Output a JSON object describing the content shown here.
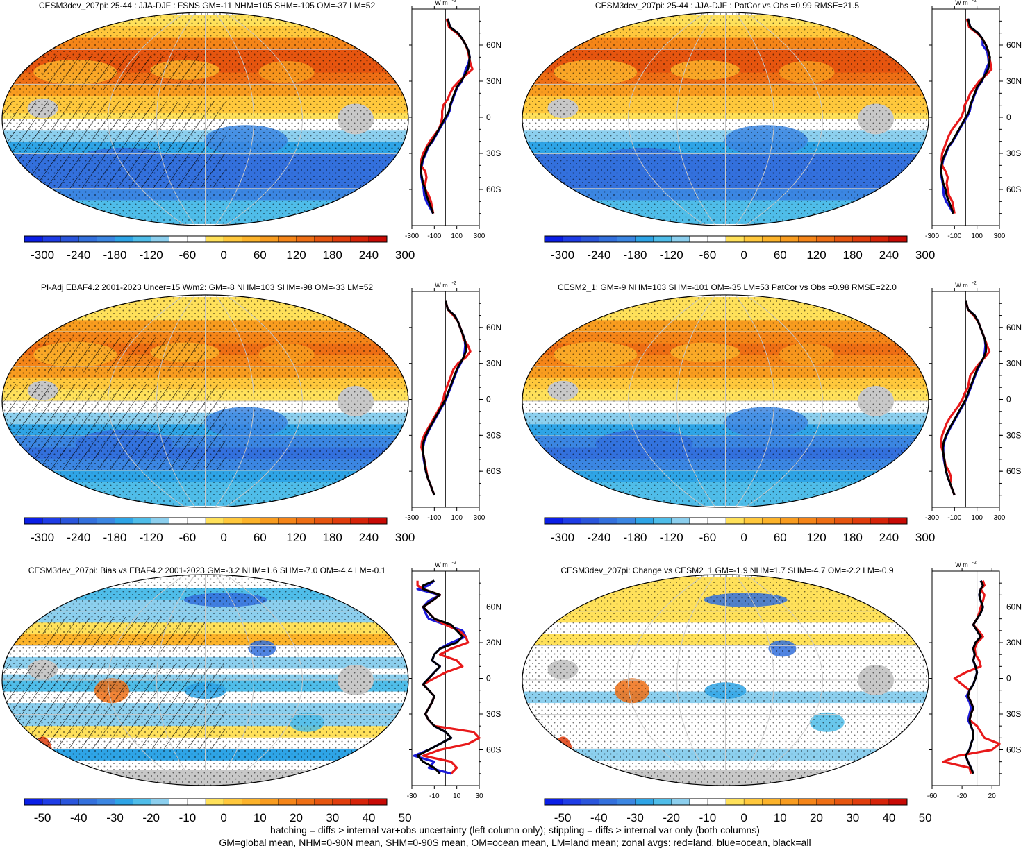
{
  "figure": {
    "footnote_line1": "hatching = diffs > internal var+obs uncertainty (left column only); stippling = diffs > internal var only (both columns)",
    "footnote_line2": "GM=global mean, NHM=0-90N mean, SHM=0-90S mean, OM=ocean mean, LM=land mean; zonal avgs: red=land, blue=ocean, black=all",
    "units_label": "W m",
    "units_exponent": "-2",
    "lat_ticks": [
      "60N",
      "30N",
      "0",
      "30S",
      "60S"
    ]
  },
  "colors": {
    "land": "#e8191a",
    "ocean": "#1a1ad9",
    "all": "#000000",
    "landmask": "#c8c8c8",
    "map_border": "#000000"
  },
  "chart_data": [
    {
      "type": "heatmap",
      "panel": "top-left",
      "title": "CESM3dev_207pi: 25-44 : JJA-DJF : FSNS GM=-11 NHM=105 SHM=-105 OM=-37 LM=52",
      "colorbar": {
        "min": -330,
        "max": 330,
        "labels": [
          "-300",
          "-240",
          "-180",
          "-120",
          "-60",
          "0",
          "60",
          "120",
          "180",
          "240",
          "300"
        ],
        "colors": [
          "#0a1ee6",
          "#1e3ce6",
          "#2a55dc",
          "#3370dd",
          "#3b86e2",
          "#2ea4e6",
          "#4fbde9",
          "#8ccfee",
          "#ffffff",
          "#ffffff",
          "#ffe15a",
          "#ffc83c",
          "#fcb32a",
          "#f89c1f",
          "#f58518",
          "#ee6e14",
          "#e6550f",
          "#e03c0c",
          "#d62309",
          "#c80a05"
        ]
      },
      "has_hatching": true,
      "has_stippling": true,
      "zonal": {
        "type": "line",
        "xlim": [
          -300,
          300
        ],
        "xticks": [
          "-300",
          "-100",
          "100",
          "300"
        ],
        "lat": [
          82,
          75,
          70,
          65,
          60,
          55,
          50,
          45,
          40,
          35,
          30,
          25,
          20,
          15,
          10,
          5,
          0,
          -5,
          -10,
          -15,
          -20,
          -25,
          -30,
          -35,
          -40,
          -45,
          -50,
          -55,
          -60,
          -65,
          -70,
          -75,
          -80
        ],
        "all": [
          20,
          40,
          110,
          150,
          180,
          205,
          215,
          210,
          200,
          170,
          140,
          100,
          80,
          60,
          40,
          30,
          0,
          -30,
          -60,
          -90,
          -120,
          -160,
          -180,
          -205,
          -215,
          -220,
          -210,
          -200,
          -180,
          -170,
          -150,
          -130,
          -110
        ],
        "land": [
          10,
          30,
          100,
          150,
          180,
          200,
          210,
          220,
          240,
          180,
          120,
          70,
          40,
          20,
          -20,
          -30,
          -30,
          -40,
          -60,
          -100,
          -140,
          -170,
          -200,
          -215,
          -220,
          -180,
          -170,
          -180,
          -180,
          -150,
          -130,
          -120,
          -110
        ],
        "ocean": [
          20,
          40,
          110,
          150,
          180,
          205,
          215,
          205,
          180,
          165,
          145,
          105,
          85,
          65,
          45,
          35,
          10,
          -25,
          -55,
          -85,
          -115,
          -155,
          -175,
          -200,
          -210,
          -220,
          -215,
          -205,
          -195,
          -190,
          -170,
          -140,
          -110
        ]
      }
    },
    {
      "type": "heatmap",
      "panel": "top-right",
      "title": "CESM3dev_207pi: 25-44 : JJA-DJF : PatCor vs Obs =0.99 RMSE=21.5",
      "colorbar": {
        "min": -330,
        "max": 330,
        "labels": [
          "-300",
          "-240",
          "-180",
          "-120",
          "-60",
          "0",
          "60",
          "120",
          "180",
          "240",
          "300"
        ],
        "colors": [
          "#0a1ee6",
          "#1e3ce6",
          "#2a55dc",
          "#3370dd",
          "#3b86e2",
          "#2ea4e6",
          "#4fbde9",
          "#8ccfee",
          "#ffffff",
          "#ffffff",
          "#ffe15a",
          "#ffc83c",
          "#fcb32a",
          "#f89c1f",
          "#f58518",
          "#ee6e14",
          "#e6550f",
          "#e03c0c",
          "#d62309",
          "#c80a05"
        ]
      },
      "has_hatching": false,
      "has_stippling": true,
      "zonal": {
        "type": "line",
        "xlim": [
          -300,
          300
        ],
        "xticks": [
          "-300",
          "-100",
          "100",
          "300"
        ],
        "lat": [
          82,
          75,
          70,
          65,
          60,
          55,
          50,
          45,
          40,
          35,
          30,
          25,
          20,
          15,
          10,
          5,
          0,
          -5,
          -10,
          -15,
          -20,
          -25,
          -30,
          -35,
          -40,
          -45,
          -50,
          -55,
          -60,
          -65,
          -70,
          -75,
          -80
        ],
        "all": [
          20,
          40,
          110,
          150,
          180,
          200,
          215,
          210,
          200,
          170,
          140,
          100,
          80,
          60,
          40,
          30,
          0,
          -30,
          -60,
          -90,
          -120,
          -160,
          -180,
          -205,
          -215,
          -220,
          -210,
          -200,
          -180,
          -170,
          -150,
          -130,
          -110
        ],
        "land": [
          10,
          30,
          100,
          150,
          180,
          200,
          210,
          220,
          230,
          180,
          120,
          80,
          40,
          20,
          -10,
          -20,
          -40,
          -80,
          -120,
          -150,
          -170,
          -190,
          -210,
          -215,
          -210,
          -180,
          -160,
          -170,
          -160,
          -150,
          -120,
          -110,
          -100
        ],
        "ocean": [
          20,
          40,
          110,
          150,
          150,
          190,
          200,
          205,
          180,
          165,
          145,
          105,
          85,
          65,
          45,
          35,
          10,
          -25,
          -55,
          -85,
          -115,
          -155,
          -175,
          -200,
          -210,
          -220,
          -215,
          -205,
          -200,
          -195,
          -175,
          -140,
          -110
        ]
      }
    },
    {
      "type": "heatmap",
      "panel": "middle-left",
      "title": "PI-Adj EBAF4.2 2001-2023 Uncer=15 W/m2: GM=-8 NHM=103 SHM=-98 OM=-33 LM=52",
      "colorbar": {
        "min": -330,
        "max": 330,
        "labels": [
          "-300",
          "-240",
          "-180",
          "-120",
          "-60",
          "0",
          "60",
          "120",
          "180",
          "240",
          "300"
        ],
        "colors": [
          "#0a1ee6",
          "#1e3ce6",
          "#2a55dc",
          "#3370dd",
          "#3b86e2",
          "#2ea4e6",
          "#4fbde9",
          "#8ccfee",
          "#ffffff",
          "#ffffff",
          "#ffe15a",
          "#ffc83c",
          "#fcb32a",
          "#f89c1f",
          "#f58518",
          "#ee6e14",
          "#e6550f",
          "#e03c0c",
          "#d62309",
          "#c80a05"
        ]
      },
      "has_hatching": true,
      "has_stippling": true,
      "zonal": {
        "type": "line",
        "xlim": [
          -300,
          300
        ],
        "xticks": [
          "-300",
          "-100",
          "100",
          "300"
        ],
        "lat": [
          82,
          75,
          70,
          65,
          60,
          55,
          50,
          45,
          40,
          35,
          30,
          25,
          20,
          15,
          10,
          5,
          0,
          -5,
          -10,
          -15,
          -20,
          -25,
          -30,
          -35,
          -40,
          -45,
          -50,
          -55,
          -60,
          -65,
          -70,
          -75,
          -80
        ],
        "all": [
          0,
          20,
          80,
          110,
          130,
          150,
          170,
          180,
          180,
          160,
          130,
          100,
          80,
          60,
          40,
          20,
          0,
          -30,
          -60,
          -90,
          -120,
          -150,
          -175,
          -195,
          -205,
          -200,
          -190,
          -185,
          -175,
          -160,
          -140,
          -120,
          -100
        ],
        "land": [
          0,
          20,
          70,
          110,
          130,
          150,
          160,
          200,
          220,
          180,
          110,
          70,
          50,
          30,
          10,
          -10,
          -20,
          -40,
          -70,
          -100,
          -130,
          -160,
          -190,
          -210,
          -215,
          -200,
          -190,
          -180,
          -170,
          -160,
          -140,
          -120,
          -100
        ],
        "ocean": [
          0,
          20,
          80,
          110,
          130,
          150,
          170,
          175,
          170,
          160,
          135,
          105,
          85,
          65,
          45,
          25,
          5,
          -25,
          -55,
          -85,
          -115,
          -145,
          -170,
          -190,
          -200,
          -200,
          -195,
          -185,
          -175,
          -160,
          -140,
          -120,
          -100
        ]
      }
    },
    {
      "type": "heatmap",
      "panel": "middle-right",
      "title": "CESM2_1: GM=-9 NHM=103 SHM=-101 OM=-35 LM=53 PatCor vs Obs =0.98 RMSE=22.0",
      "colorbar": {
        "min": -330,
        "max": 330,
        "labels": [
          "-300",
          "-240",
          "-180",
          "-120",
          "-60",
          "0",
          "60",
          "120",
          "180",
          "240",
          "300"
        ],
        "colors": [
          "#0a1ee6",
          "#1e3ce6",
          "#2a55dc",
          "#3370dd",
          "#3b86e2",
          "#2ea4e6",
          "#4fbde9",
          "#8ccfee",
          "#ffffff",
          "#ffffff",
          "#ffe15a",
          "#ffc83c",
          "#fcb32a",
          "#f89c1f",
          "#f58518",
          "#ee6e14",
          "#e6550f",
          "#e03c0c",
          "#d62309",
          "#c80a05"
        ]
      },
      "has_hatching": false,
      "has_stippling": true,
      "zonal": {
        "type": "line",
        "xlim": [
          -300,
          300
        ],
        "xticks": [
          "-300",
          "-100",
          "100",
          "300"
        ],
        "lat": [
          82,
          75,
          70,
          65,
          60,
          55,
          50,
          45,
          40,
          35,
          30,
          25,
          20,
          15,
          10,
          5,
          0,
          -5,
          -10,
          -15,
          -20,
          -25,
          -30,
          -35,
          -40,
          -45,
          -50,
          -55,
          -60,
          -65,
          -70,
          -75,
          -80
        ],
        "all": [
          0,
          20,
          80,
          110,
          130,
          150,
          170,
          180,
          180,
          160,
          130,
          100,
          80,
          60,
          40,
          20,
          0,
          -30,
          -60,
          -90,
          -120,
          -150,
          -175,
          -195,
          -205,
          -200,
          -190,
          -185,
          -175,
          -160,
          -140,
          -120,
          -100
        ],
        "land": [
          0,
          20,
          70,
          110,
          130,
          150,
          170,
          190,
          210,
          170,
          120,
          80,
          40,
          30,
          20,
          -10,
          -30,
          -60,
          -100,
          -140,
          -170,
          -190,
          -210,
          -220,
          -215,
          -200,
          -190,
          -180,
          -150,
          -130,
          -140,
          -120,
          -100
        ],
        "ocean": [
          0,
          20,
          80,
          110,
          130,
          150,
          170,
          175,
          170,
          160,
          135,
          105,
          85,
          65,
          45,
          25,
          5,
          -25,
          -55,
          -85,
          -115,
          -145,
          -170,
          -190,
          -200,
          -200,
          -195,
          -185,
          -175,
          -160,
          -140,
          -120,
          -100
        ]
      }
    },
    {
      "type": "heatmap",
      "panel": "bottom-left",
      "title": "CESM3dev_207pi: Bias vs EBAF4.2 2001-2023 GM=-3.2 NHM=1.6 SHM=-7.0 OM=-4.4 LM=-0.1",
      "colorbar": {
        "min": -55,
        "max": 55,
        "labels": [
          "-50",
          "-40",
          "-30",
          "-20",
          "-10",
          "0",
          "10",
          "20",
          "30",
          "40",
          "50"
        ],
        "colors": [
          "#0a1ee6",
          "#1e3ce6",
          "#2a55dc",
          "#3370dd",
          "#3b86e2",
          "#2ea4e6",
          "#4fbde9",
          "#8ccfee",
          "#ffffff",
          "#ffffff",
          "#ffe15a",
          "#ffc83c",
          "#fcb32a",
          "#f89c1f",
          "#f58518",
          "#ee6e14",
          "#e6550f",
          "#e03c0c",
          "#d62309",
          "#c80a05"
        ]
      },
      "has_hatching": true,
      "has_stippling": true,
      "zonal": {
        "type": "line",
        "xlim": [
          -30,
          30
        ],
        "xticks": [
          "-30",
          "-10",
          "10",
          "30"
        ],
        "lat": [
          82,
          78,
          75,
          70,
          65,
          60,
          55,
          50,
          45,
          40,
          35,
          30,
          25,
          20,
          15,
          10,
          5,
          0,
          -5,
          -10,
          -15,
          -20,
          -25,
          -30,
          -35,
          -40,
          -45,
          -50,
          -55,
          -60,
          -65,
          -70,
          -75,
          -80
        ],
        "all": [
          -10,
          -20,
          -20,
          -5,
          -12,
          -20,
          -15,
          -10,
          5,
          10,
          15,
          10,
          -5,
          -10,
          -12,
          -5,
          -10,
          -15,
          -20,
          -15,
          -10,
          -12,
          -15,
          -18,
          -15,
          -10,
          0,
          5,
          -5,
          -15,
          -25,
          -20,
          -10,
          -5
        ],
        "land": [
          -25,
          -25,
          -20,
          -5,
          -12,
          -20,
          -15,
          -10,
          0,
          12,
          18,
          20,
          5,
          -5,
          10,
          15,
          0,
          -10,
          -20,
          -15,
          -10,
          -12,
          -15,
          -18,
          -15,
          -10,
          25,
          30,
          20,
          -5,
          -20,
          5,
          10,
          5
        ],
        "ocean": [
          -10,
          -15,
          -25,
          -5,
          -15,
          -20,
          -18,
          -15,
          0,
          15,
          18,
          5,
          -5,
          -10,
          -12,
          -5,
          -10,
          -15,
          -20,
          -15,
          -10,
          -12,
          -15,
          -18,
          -15,
          -10,
          0,
          5,
          -5,
          -15,
          -28,
          -10,
          -15,
          5
        ]
      }
    },
    {
      "type": "heatmap",
      "panel": "bottom-right",
      "title": "CESM3dev_207pi: Change vs CESM2_1 GM=-1.9 NHM=1.7 SHM=-4.7 OM=-2.2 LM=-0.9",
      "colorbar": {
        "min": -55,
        "max": 55,
        "labels": [
          "-50",
          "-40",
          "-30",
          "-20",
          "-10",
          "0",
          "10",
          "20",
          "30",
          "40",
          "50"
        ],
        "colors": [
          "#0a1ee6",
          "#1e3ce6",
          "#2a55dc",
          "#3370dd",
          "#3b86e2",
          "#2ea4e6",
          "#4fbde9",
          "#8ccfee",
          "#ffffff",
          "#ffffff",
          "#ffe15a",
          "#ffc83c",
          "#fcb32a",
          "#f89c1f",
          "#f58518",
          "#ee6e14",
          "#e6550f",
          "#e03c0c",
          "#d62309",
          "#c80a05"
        ]
      },
      "has_hatching": false,
      "has_stippling": true,
      "zonal": {
        "type": "line",
        "xlim": [
          -60,
          30
        ],
        "xticks": [
          "-60",
          "-20",
          "20"
        ],
        "lat": [
          82,
          78,
          75,
          70,
          65,
          60,
          55,
          50,
          45,
          40,
          35,
          30,
          25,
          20,
          15,
          10,
          5,
          0,
          -5,
          -10,
          -15,
          -20,
          -25,
          -30,
          -35,
          -40,
          -45,
          -50,
          -55,
          -60,
          -65,
          -70,
          -75,
          -80
        ],
        "all": [
          5,
          8,
          5,
          3,
          5,
          8,
          5,
          0,
          -5,
          0,
          5,
          -2,
          -5,
          -3,
          -5,
          -2,
          0,
          -2,
          -5,
          -10,
          -12,
          -8,
          -5,
          -8,
          -10,
          -8,
          -5,
          -5,
          -8,
          -10,
          -15,
          -12,
          -8,
          -5
        ],
        "land": [
          8,
          10,
          5,
          10,
          8,
          5,
          3,
          0,
          -5,
          2,
          8,
          0,
          -3,
          -2,
          3,
          5,
          -15,
          -30,
          -20,
          -10,
          -12,
          -8,
          -5,
          -8,
          -10,
          0,
          5,
          10,
          30,
          20,
          -25,
          -45,
          -10,
          -8
        ],
        "ocean": [
          5,
          8,
          5,
          3,
          5,
          8,
          5,
          0,
          -5,
          0,
          5,
          -2,
          -5,
          -3,
          -5,
          -2,
          0,
          -2,
          -5,
          -10,
          -14,
          -10,
          -8,
          -10,
          -12,
          -8,
          -5,
          -5,
          -8,
          -10,
          -15,
          -12,
          -8,
          -5
        ]
      }
    }
  ]
}
